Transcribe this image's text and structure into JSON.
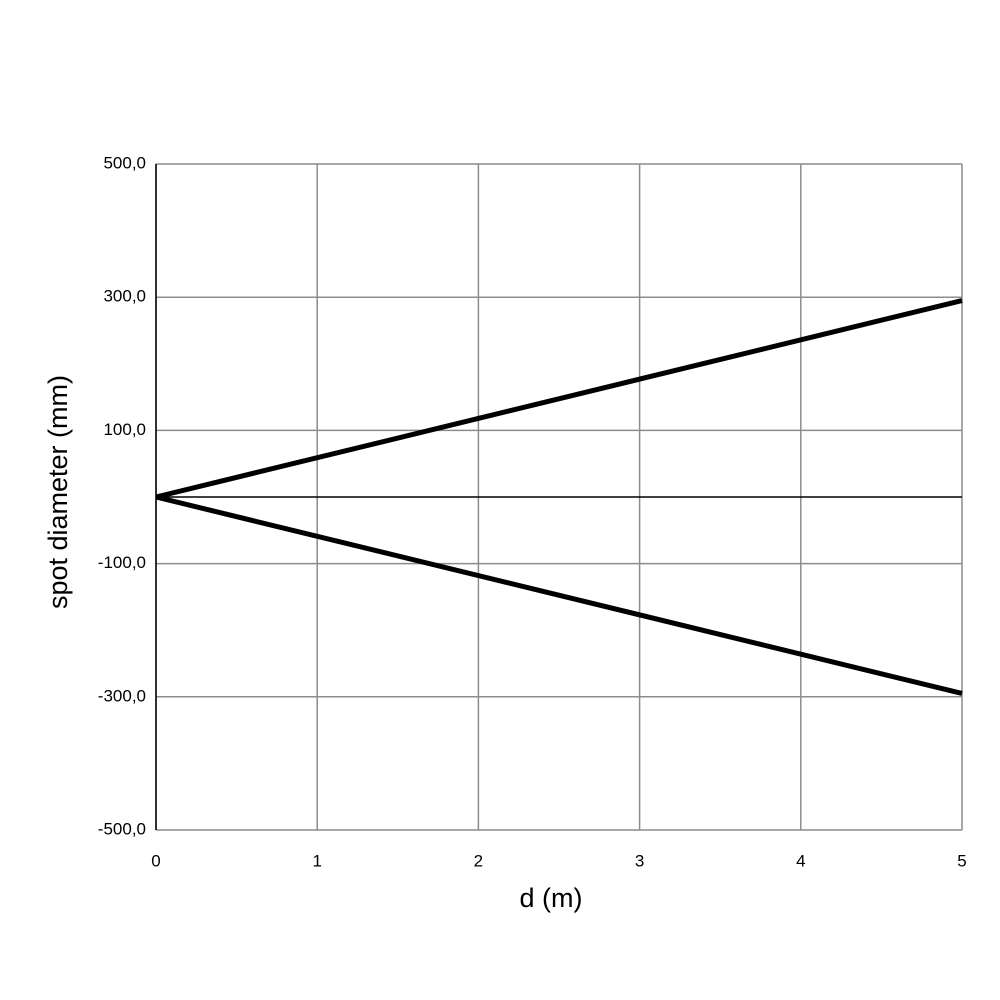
{
  "chart_data": {
    "type": "line",
    "xlabel": "d (m)",
    "ylabel": "spot diameter (mm)",
    "x": [
      0,
      5
    ],
    "series": [
      {
        "color": "#000000",
        "values": [
          0,
          295
        ]
      },
      {
        "color": "#000000",
        "values": [
          0,
          -295
        ]
      }
    ],
    "xlim": [
      0,
      5
    ],
    "xticks": [
      0,
      1,
      2,
      3,
      4,
      5
    ],
    "ylim": [
      -500,
      500
    ],
    "yticks": [
      {
        "value": 500,
        "label": "500,0"
      },
      {
        "value": 300,
        "label": "300,0"
      },
      {
        "value": 100,
        "label": "100,0"
      },
      {
        "value": -100,
        "label": "-100,0"
      },
      {
        "value": -300,
        "label": "-300,0"
      },
      {
        "value": -500,
        "label": "-500,0"
      }
    ],
    "grid": true
  }
}
